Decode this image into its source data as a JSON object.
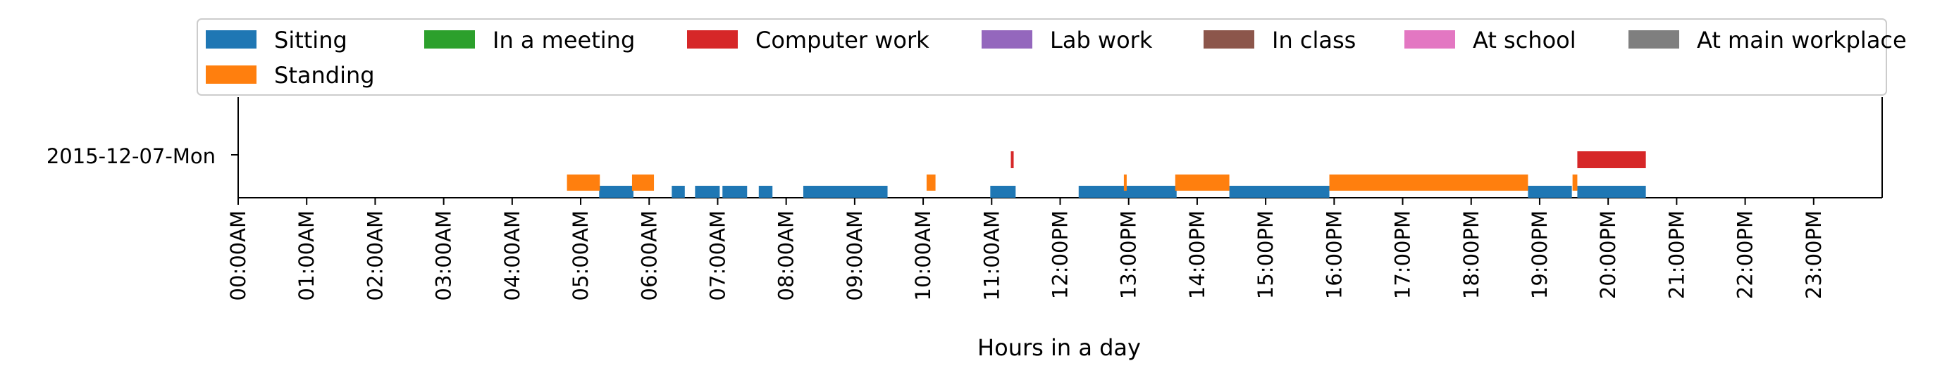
{
  "chart_data": {
    "type": "timeline",
    "date_label": "2015-12-07-Mon",
    "xlabel": "Hours in a day",
    "xlim": [
      0,
      24
    ],
    "x_tick_labels": [
      "00:00AM",
      "01:00AM",
      "02:00AM",
      "03:00AM",
      "04:00AM",
      "05:00AM",
      "06:00AM",
      "07:00AM",
      "08:00AM",
      "09:00AM",
      "10:00AM",
      "11:00AM",
      "12:00PM",
      "13:00PM",
      "14:00PM",
      "15:00PM",
      "16:00PM",
      "17:00PM",
      "18:00PM",
      "19:00PM",
      "20:00PM",
      "21:00PM",
      "22:00PM",
      "23:00PM"
    ],
    "legend_placement": "top, above plot",
    "series": [
      {
        "name": "Sitting",
        "color": "#1f77b4",
        "intervals": [
          [
            5.27,
            5.77
          ],
          [
            6.33,
            6.52
          ],
          [
            6.67,
            7.03
          ],
          [
            7.07,
            7.43
          ],
          [
            7.6,
            7.8
          ],
          [
            8.25,
            9.48
          ],
          [
            10.98,
            11.35
          ],
          [
            12.27,
            13.7
          ],
          [
            14.47,
            15.93
          ],
          [
            18.83,
            19.47
          ],
          [
            19.55,
            20.55
          ]
        ]
      },
      {
        "name": "Standing",
        "color": "#ff7f0e",
        "intervals": [
          [
            4.8,
            5.28
          ],
          [
            5.75,
            6.07
          ],
          [
            10.05,
            10.18
          ],
          [
            12.93,
            12.97
          ],
          [
            13.68,
            14.47
          ],
          [
            15.93,
            18.83
          ],
          [
            19.48,
            19.55
          ]
        ]
      },
      {
        "name": "In a meeting",
        "color": "#2ca02c",
        "intervals": []
      },
      {
        "name": "Computer work",
        "color": "#d62728",
        "intervals": [
          [
            11.28,
            11.32
          ],
          [
            19.55,
            20.55
          ]
        ]
      },
      {
        "name": "Lab work",
        "color": "#9467bd",
        "intervals": []
      },
      {
        "name": "In class",
        "color": "#8c564b",
        "intervals": []
      },
      {
        "name": "At school",
        "color": "#e377c2",
        "intervals": []
      },
      {
        "name": "At main workplace",
        "color": "#7f7f7f",
        "intervals": []
      }
    ]
  }
}
